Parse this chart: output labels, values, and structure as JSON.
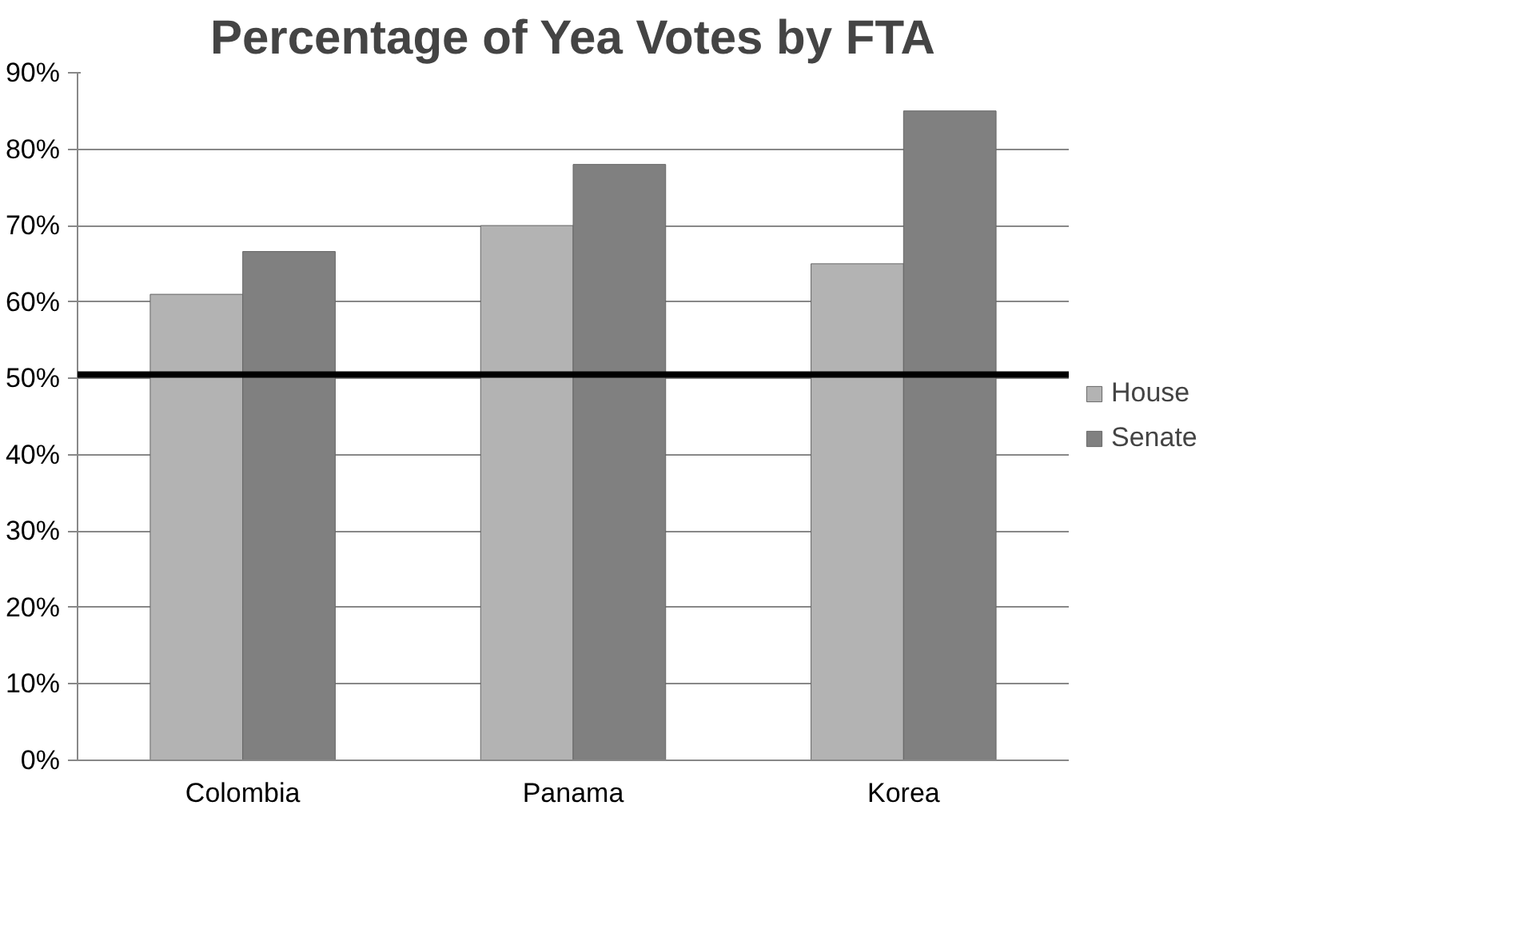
{
  "chart_data": {
    "type": "bar",
    "title": "Percentage of Yea Votes by FTA",
    "categories": [
      "Colombia",
      "Panama",
      "Korea"
    ],
    "series": [
      {
        "name": "House",
        "color": "#b3b3b3",
        "values": [
          61,
          70,
          65
        ]
      },
      {
        "name": "Senate",
        "color": "#808080",
        "values": [
          66.6,
          78,
          85
        ]
      }
    ],
    "ylim": [
      0,
      90
    ],
    "yticks": [
      {
        "value": 0,
        "label": "0%"
      },
      {
        "value": 10,
        "label": "10%"
      },
      {
        "value": 20,
        "label": "20%"
      },
      {
        "value": 30,
        "label": "30%"
      },
      {
        "value": 40,
        "label": "40%"
      },
      {
        "value": 50,
        "label": "50%"
      },
      {
        "value": 60,
        "label": "60%"
      },
      {
        "value": 70,
        "label": "70%"
      },
      {
        "value": 80,
        "label": "80%"
      },
      {
        "value": 90,
        "label": "90%"
      }
    ],
    "ref_lines": [
      {
        "axis": "y",
        "value": 50.5,
        "color": "#000000"
      }
    ],
    "grid": "y",
    "legend": "right"
  }
}
